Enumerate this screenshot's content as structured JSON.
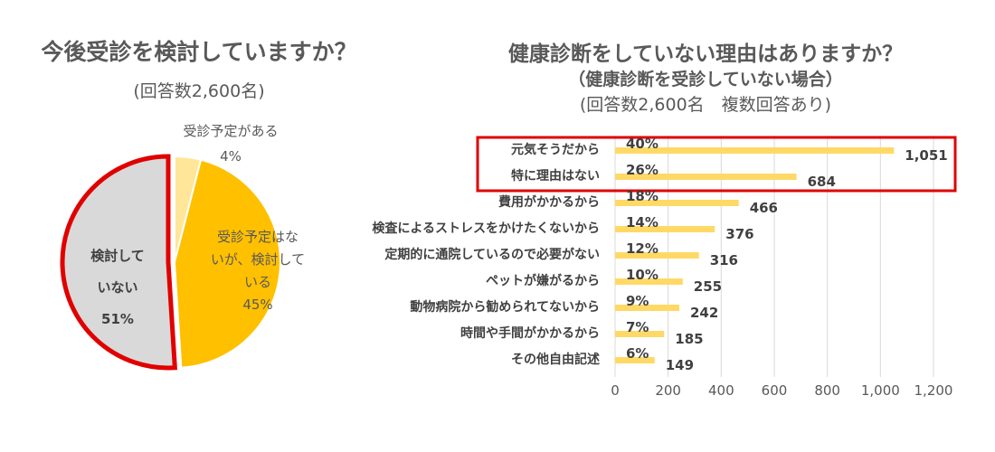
{
  "left": {
    "title": "今後受診を検討していますか？",
    "subtitle": "(回答数2,600名)"
  },
  "right": {
    "title": "健康診断をしていない理由はありますか？",
    "title2": "（健康診断を受診していない場合）",
    "subtitle": "(回答数2,600名　複数回答あり)"
  },
  "colors": {
    "pie_grey": "#d9d9d9",
    "pie_orange": "#ffc000",
    "pie_light": "#ffe699",
    "bar": "#ffd966",
    "highlight": "#e00000",
    "grid": "#d9d9d9"
  },
  "chart_data": [
    {
      "type": "pie",
      "slices": [
        {
          "label_lines": [
            "受診予定がある",
            "4%"
          ],
          "value": 4
        },
        {
          "label_lines": [
            "受診予定はな",
            "いが、検討して",
            "いる",
            "45%"
          ],
          "value": 45
        },
        {
          "label_lines": [
            "検討して",
            "いない",
            "51%"
          ],
          "value": 51
        }
      ],
      "highlighted_slice": "検討していない"
    },
    {
      "type": "bar",
      "orientation": "horizontal",
      "categories": [
        "元気そうだから",
        "特に理由はない",
        "費用がかかるから",
        "検査によるストレスをかけたくないから",
        "定期的に通院しているので必要がない",
        "ペットが嫌がるから",
        "動物病院から勧められてないから",
        "時間や手間がかかるから",
        "その他自由記述"
      ],
      "values": [
        1051,
        684,
        466,
        376,
        316,
        255,
        242,
        185,
        149
      ],
      "value_labels": [
        "1,051",
        "684",
        "466",
        "376",
        "316",
        "255",
        "242",
        "185",
        "149"
      ],
      "percent_labels": [
        "40%",
        "26%",
        "18%",
        "14%",
        "12%",
        "10%",
        "9%",
        "7%",
        "6%"
      ],
      "xlim": [
        0,
        1200
      ],
      "xticks": [
        "0",
        "200",
        "400",
        "600",
        "800",
        "1,000",
        "1,200"
      ],
      "highlighted_categories": [
        "元気そうだから",
        "特に理由はない"
      ]
    }
  ]
}
